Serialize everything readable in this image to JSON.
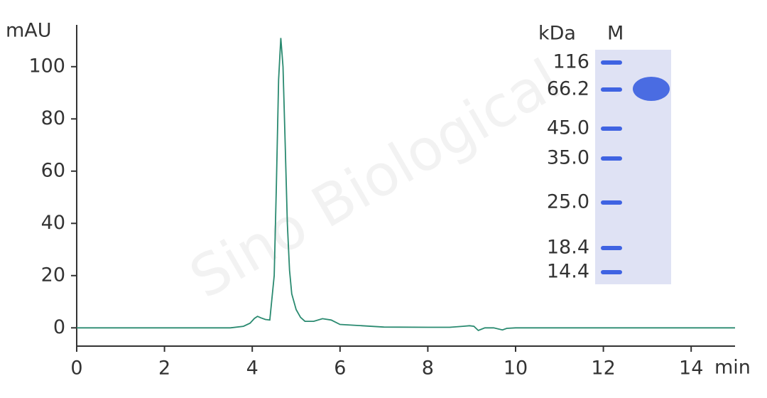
{
  "chart_data": {
    "type": "line",
    "y_axis_label": "mAU",
    "x_axis_label": "min",
    "x": [
      0,
      1,
      2,
      3,
      3.5,
      3.8,
      3.95,
      4.05,
      4.12,
      4.2,
      4.3,
      4.4,
      4.5,
      4.55,
      4.6,
      4.65,
      4.7,
      4.75,
      4.8,
      4.85,
      4.9,
      5.0,
      5.1,
      5.2,
      5.4,
      5.6,
      5.8,
      6.0,
      6.5,
      7,
      8,
      8.5,
      8.8,
      8.95,
      9.05,
      9.15,
      9.3,
      9.5,
      9.7,
      9.8,
      10,
      12,
      14,
      15
    ],
    "series": [
      {
        "name": "mAU",
        "color": "#2a8a70",
        "values": [
          0,
          0,
          0,
          0,
          0,
          0.6,
          1.8,
          3.6,
          4.4,
          3.8,
          3.2,
          3,
          20,
          55,
          95,
          111,
          100,
          70,
          40,
          22,
          13,
          7,
          4,
          2.5,
          2.5,
          3.5,
          3,
          1.3,
          0.8,
          0.3,
          0.2,
          0.2,
          0.6,
          0.8,
          0.6,
          -1,
          0,
          0,
          -0.8,
          -0.2,
          0,
          0,
          0,
          0
        ]
      }
    ],
    "xlim": [
      0,
      15
    ],
    "xticks": [
      0,
      2,
      4,
      6,
      8,
      10,
      12,
      14
    ],
    "ylim": [
      -7,
      116
    ],
    "yticks": [
      0,
      20,
      40,
      60,
      80,
      100
    ]
  },
  "gel": {
    "unit_label": "kDa",
    "lane_label": "M",
    "markers": [
      "116",
      "66.2",
      "45.0",
      "35.0",
      "25.0",
      "18.4",
      "14.4"
    ]
  },
  "watermark": "Sino Biological"
}
